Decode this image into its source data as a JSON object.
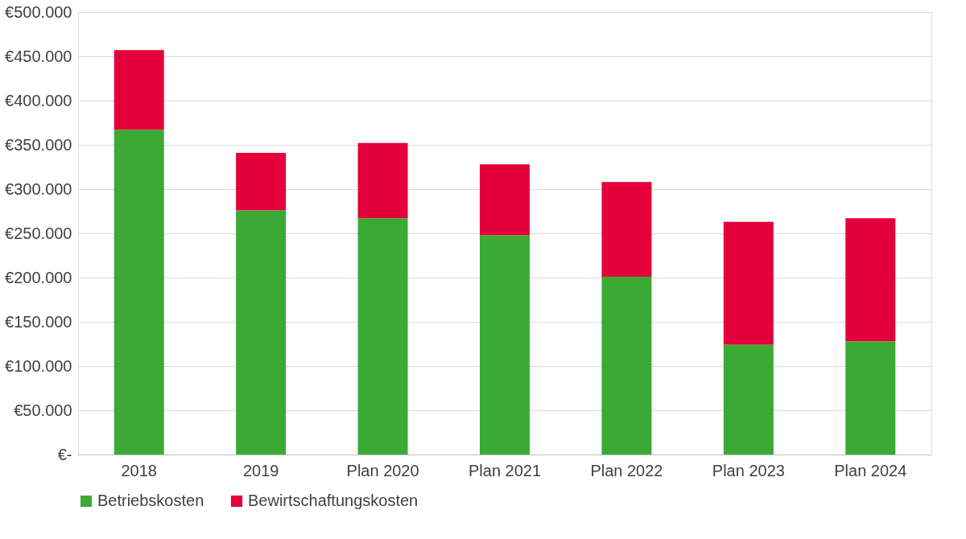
{
  "chart_data": {
    "type": "bar",
    "stacked": true,
    "categories": [
      "2018",
      "2019",
      "Plan 2020",
      "Plan 2021",
      "Plan 2022",
      "Plan 2023",
      "Plan 2024"
    ],
    "series": [
      {
        "name": "Betriebskosten",
        "color": "#3aaa35",
        "values": [
          367000,
          276000,
          267000,
          248000,
          201000,
          124000,
          128000
        ]
      },
      {
        "name": "Bewirtschaftungskosten",
        "color": "#e4003a",
        "values": [
          90000,
          65000,
          85000,
          80000,
          107000,
          139000,
          139000
        ]
      }
    ],
    "ylim": [
      0,
      500000
    ],
    "yticks": [
      {
        "value": 0,
        "label": "€-"
      },
      {
        "value": 50000,
        "label": "€50.000"
      },
      {
        "value": 100000,
        "label": "€100.000"
      },
      {
        "value": 150000,
        "label": "€150.000"
      },
      {
        "value": 200000,
        "label": "€200.000"
      },
      {
        "value": 250000,
        "label": "€250.000"
      },
      {
        "value": 300000,
        "label": "€300.000"
      },
      {
        "value": 350000,
        "label": "€350.000"
      },
      {
        "value": 400000,
        "label": "€400.000"
      },
      {
        "value": 450000,
        "label": "€450.000"
      },
      {
        "value": 500000,
        "label": "€500.000"
      }
    ],
    "grid": "y",
    "legend": "bottom"
  }
}
